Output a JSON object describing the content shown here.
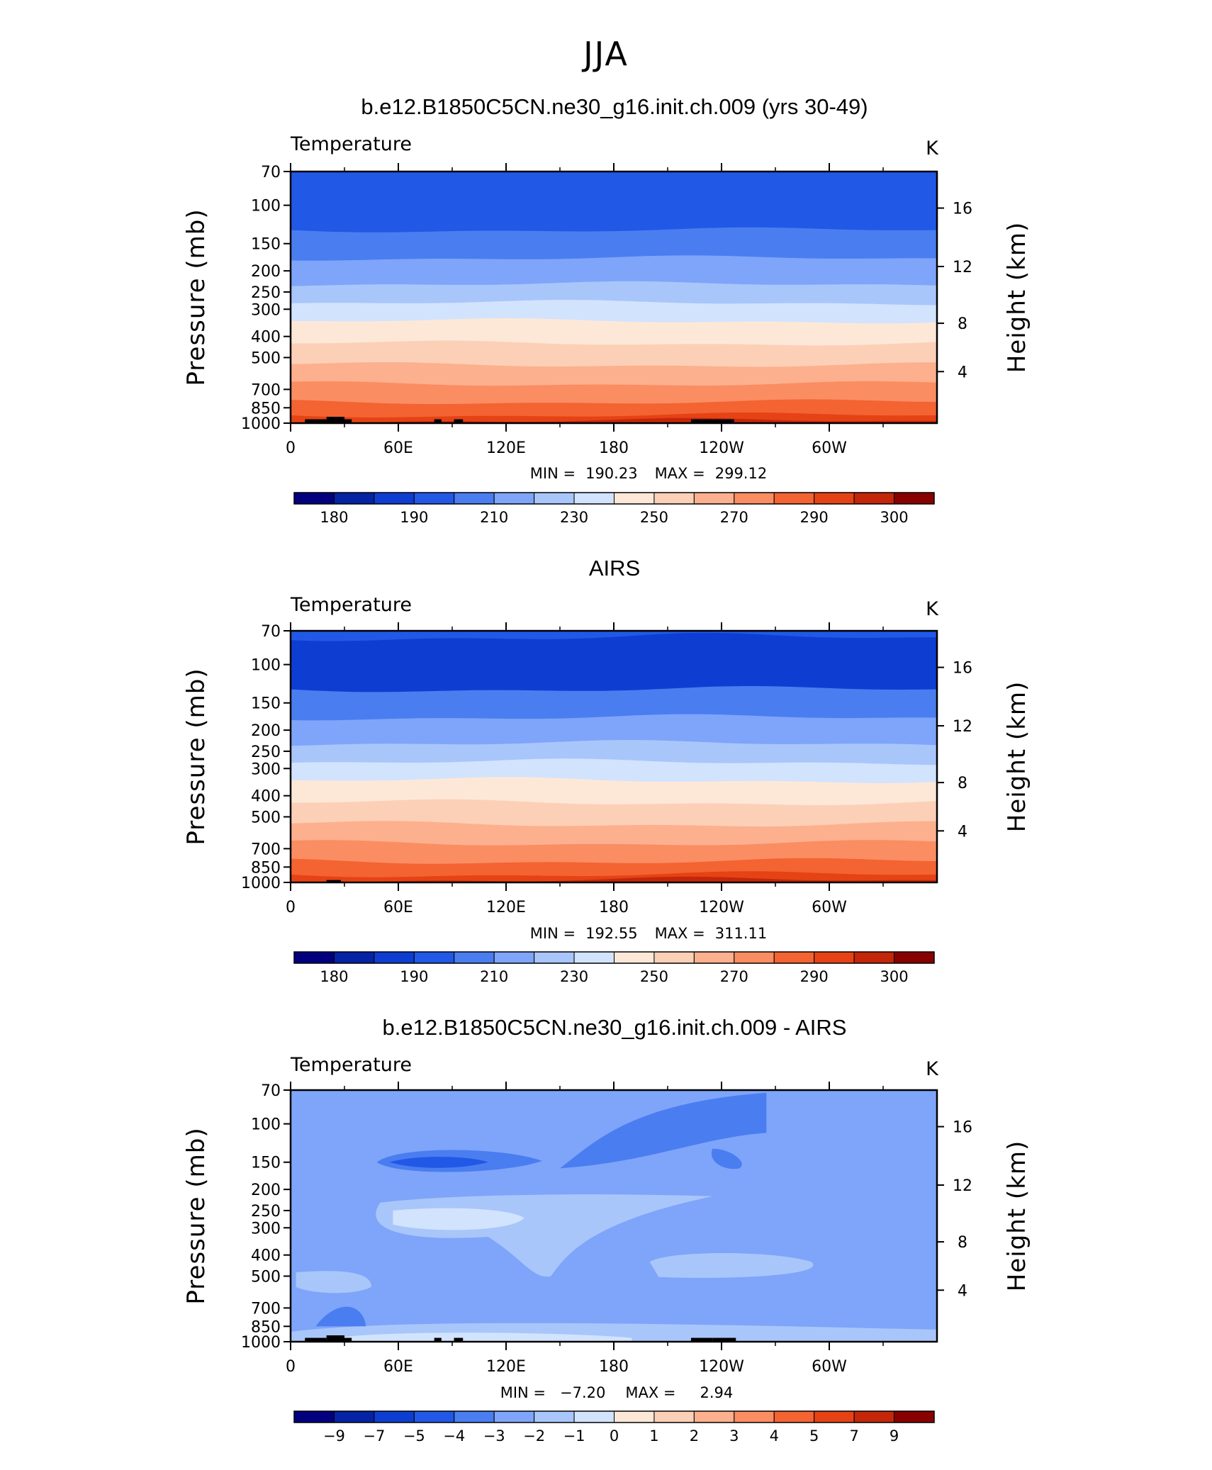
{
  "title": "JJA",
  "panels": [
    {
      "title": "b.e12.B1850C5CN.ne30_g16.init.ch.009 (yrs 30-49)",
      "field": "Temperature",
      "units": "K",
      "stats": {
        "min_label": "MIN =",
        "min": "190.23",
        "max_label": "MAX =",
        "max": "299.12"
      },
      "levels": [
        180,
        190,
        210,
        230,
        250,
        270,
        290,
        300
      ],
      "colors": [
        "#02007f",
        "#0423a5",
        "#0e3ed1",
        "#2158e6",
        "#4a7df0",
        "#7ea5f9",
        "#a9c6fb",
        "#d2e3fd",
        "#fde8d8",
        "#fcd0b7",
        "#fcb08e",
        "#fb8d63",
        "#f46332",
        "#e54315",
        "#c32609",
        "#880000"
      ],
      "bands": [
        180,
        190,
        200,
        210,
        220,
        230,
        240,
        250,
        260,
        270,
        280,
        285,
        290,
        295,
        300
      ]
    },
    {
      "title": "AIRS",
      "field": "Temperature",
      "units": "K",
      "stats": {
        "min_label": "MIN =",
        "min": "192.55",
        "max_label": "MAX =",
        "max": "311.11"
      },
      "levels": [
        180,
        190,
        210,
        230,
        250,
        270,
        290,
        300
      ],
      "colors": [
        "#02007f",
        "#0423a5",
        "#0e3ed1",
        "#2158e6",
        "#4a7df0",
        "#7ea5f9",
        "#a9c6fb",
        "#d2e3fd",
        "#fde8d8",
        "#fcd0b7",
        "#fcb08e",
        "#fb8d63",
        "#f46332",
        "#e54315",
        "#c32609",
        "#880000"
      ]
    },
    {
      "title": "b.e12.B1850C5CN.ne30_g16.init.ch.009 - AIRS",
      "field": "Temperature",
      "units": "K",
      "stats": {
        "min_label": "MIN =",
        "min": "−7.20",
        "max_label": "MAX =",
        "max": "2.94"
      },
      "levels": [
        "−9",
        "−7",
        "−5",
        "−4",
        "−3",
        "−2",
        "−1",
        "0",
        "1",
        "2",
        "3",
        "4",
        "5",
        "7",
        "9"
      ],
      "colors": [
        "#02007f",
        "#0423a5",
        "#0e3ed1",
        "#2158e6",
        "#4a7df0",
        "#7ea5f9",
        "#a9c6fb",
        "#d2e3fd",
        "#fde8d8",
        "#fcd0b7",
        "#fcb08e",
        "#fb8d63",
        "#f46332",
        "#e54315",
        "#c32609",
        "#880000"
      ]
    }
  ],
  "axes": {
    "ylabel_left": "Pressure (mb)",
    "ylabel_right": "Height (km)",
    "pressure_ticks": [
      "70",
      "100",
      "150",
      "200",
      "250",
      "300",
      "400",
      "500",
      "700",
      "850",
      "1000"
    ],
    "height_ticks": [
      "16",
      "12",
      "8",
      "4"
    ],
    "lon_ticks": [
      "0",
      "60E",
      "120E",
      "180",
      "120W",
      "60W"
    ]
  },
  "chart_data": [
    {
      "type": "heatmap",
      "title": "b.e12.B1850C5CN.ne30_g16.init.ch.009 (yrs 30-49)",
      "variable": "Temperature",
      "units": "K",
      "x_axis": "longitude",
      "x_ticks": [
        "0",
        "60E",
        "120E",
        "180",
        "120W",
        "60W"
      ],
      "y_axis": "Pressure (mb)",
      "y_log_scale": true,
      "ylim": [
        1000,
        70
      ],
      "min": 190.23,
      "max": 299.12,
      "contour_levels": [
        180,
        190,
        210,
        230,
        250,
        270,
        290,
        300
      ],
      "layers_by_pressure": [
        {
          "p": [
            70,
            130
          ],
          "T": 200
        },
        {
          "p": [
            130,
            175
          ],
          "T": 210
        },
        {
          "p": [
            175,
            230
          ],
          "T": 220
        },
        {
          "p": [
            230,
            280
          ],
          "T": 230
        },
        {
          "p": [
            280,
            340
          ],
          "T": 240
        },
        {
          "p": [
            340,
            430
          ],
          "T": 250
        },
        {
          "p": [
            430,
            540
          ],
          "T": 260
        },
        {
          "p": [
            540,
            660
          ],
          "T": 270
        },
        {
          "p": [
            660,
            800
          ],
          "T": 280
        },
        {
          "p": [
            800,
            920
          ],
          "T": 285
        },
        {
          "p": [
            920,
            1000
          ],
          "T": 290
        }
      ]
    },
    {
      "type": "heatmap",
      "title": "AIRS",
      "variable": "Temperature",
      "units": "K",
      "x_axis": "longitude",
      "x_ticks": [
        "0",
        "60E",
        "120E",
        "180",
        "120W",
        "60W"
      ],
      "y_axis": "Pressure (mb)",
      "y_log_scale": true,
      "ylim": [
        1000,
        70
      ],
      "min": 192.55,
      "max": 311.11,
      "contour_levels": [
        180,
        190,
        210,
        230,
        250,
        270,
        290,
        300
      ]
    },
    {
      "type": "heatmap",
      "title": "b.e12.B1850C5CN.ne30_g16.init.ch.009 - AIRS",
      "variable": "Temperature",
      "units": "K",
      "x_axis": "longitude",
      "x_ticks": [
        "0",
        "60E",
        "120E",
        "180",
        "120W",
        "60W"
      ],
      "y_axis": "Pressure (mb)",
      "y_log_scale": true,
      "ylim": [
        1000,
        70
      ],
      "min": -7.2,
      "max": 2.94,
      "contour_levels": [
        -9,
        -7,
        -5,
        -4,
        -3,
        -2,
        -1,
        0,
        1,
        2,
        3,
        4,
        5,
        7,
        9
      ],
      "dominant_value_range": [
        -3,
        -1
      ]
    }
  ]
}
